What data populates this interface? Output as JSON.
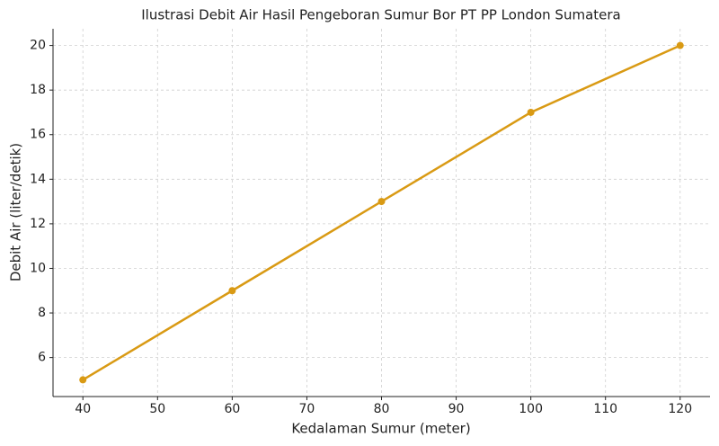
{
  "chart_data": {
    "type": "line",
    "title": "Ilustrasi Debit Air Hasil Pengeboran Sumur Bor PT PP London Sumatera",
    "x_label": "Kedalaman Sumur (meter)",
    "y_label": "Debit Air (liter/detik)",
    "x": [
      40,
      60,
      80,
      100,
      120
    ],
    "series": [
      {
        "name": "Debit Air",
        "color": "#d99a14",
        "values": [
          5,
          9,
          13,
          17,
          20
        ]
      }
    ],
    "xlim": [
      36,
      124
    ],
    "xticks": [
      40,
      50,
      60,
      70,
      80,
      90,
      100,
      110,
      120
    ],
    "ylim": [
      4.25,
      20.75
    ],
    "yticks": [
      6,
      8,
      10,
      12,
      14,
      16,
      18,
      20
    ],
    "grid": true
  }
}
